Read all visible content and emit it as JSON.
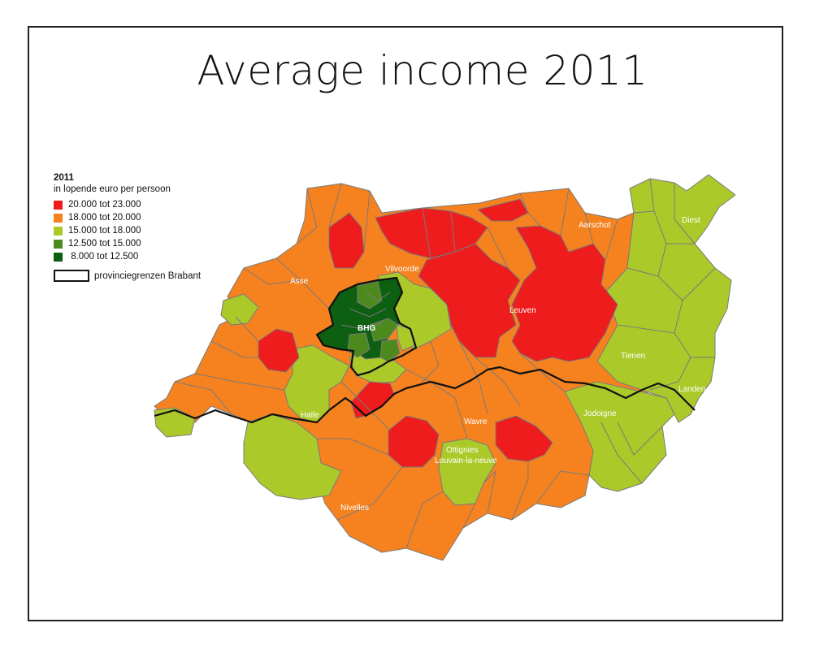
{
  "title": "Average income  2011",
  "legend": {
    "year": "2011",
    "unit": "in lopende euro per persoon",
    "classes": [
      {
        "label": "20.000 tot 23.000",
        "color": "#ee1c1c"
      },
      {
        "label": "18.000 tot 20.000",
        "color": "#f5821f"
      },
      {
        "label": "15.000 tot 18.000",
        "color": "#acc92a"
      },
      {
        "label": "12.500 tot 15.000",
        "color": "#4c8a1e"
      },
      {
        "label": " 8.000 tot 12.500",
        "color": "#0d5f12"
      }
    ],
    "boundary_label": "provinciegrenzen Brabant"
  },
  "places": {
    "asse": "Asse",
    "vilvoorde": "Vilvoorde",
    "bhg": "BHG",
    "aarschot": "Aarschot",
    "diest": "Diest",
    "leuven": "Leuven",
    "tienen": "Tienen",
    "landen": "Landen",
    "halle": "Halle",
    "wavre": "Wavre",
    "jodoigne": "Jodoigne",
    "ottignies": "Ottignies",
    "louvain": "Louvain-la-neuve",
    "nivelles": "Nivelles"
  }
}
